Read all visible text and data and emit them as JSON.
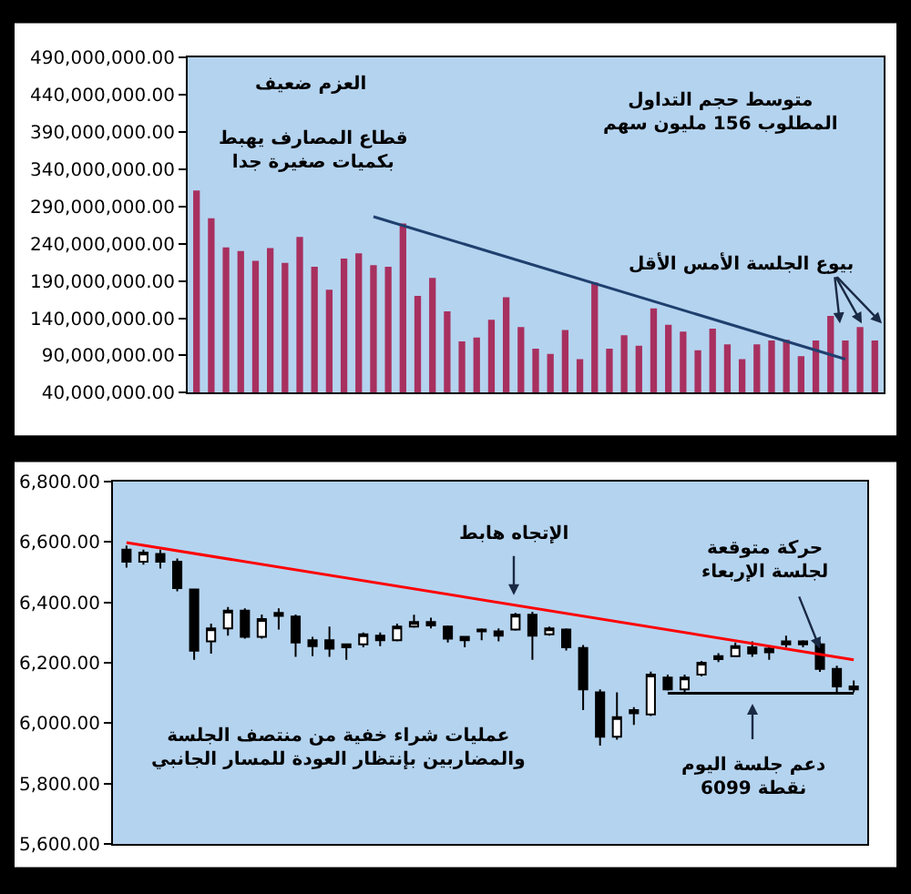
{
  "chart_data": [
    {
      "type": "bar",
      "categories": [
        null,
        null,
        null,
        null,
        null,
        null,
        null,
        null,
        null,
        null,
        null,
        null,
        null,
        null,
        null,
        null,
        null,
        null,
        null,
        null,
        null,
        null,
        null,
        null,
        null,
        null,
        null,
        null,
        null,
        null,
        null,
        null,
        null,
        null,
        null,
        null,
        null,
        null,
        null,
        null,
        null,
        null,
        null,
        null,
        null,
        null,
        null
      ],
      "series": [
        {
          "type": "bar",
          "color": "#a8305f",
          "values": [
            311000000,
            274000000,
            235000000,
            230000000,
            217000000,
            234000000,
            214000000,
            249000000,
            209000000,
            178000000,
            220000000,
            227000000,
            211000000,
            209000000,
            267000000,
            170000000,
            194000000,
            149000000,
            109000000,
            114000000,
            138000000,
            168000000,
            128000000,
            99000000,
            92000000,
            124000000,
            85000000,
            188000000,
            99000000,
            117000000,
            103000000,
            153000000,
            131000000,
            122000000,
            97000000,
            126000000,
            105000000,
            85000000,
            105000000,
            110000000,
            111000000,
            89000000,
            110000000,
            143000000,
            110000000,
            128000000,
            110000000
          ]
        },
        {
          "type": "line",
          "color": "#1f3f6e",
          "values": [
            null,
            null,
            null,
            null,
            null,
            null,
            null,
            null,
            null,
            null,
            null,
            null,
            276000000,
            null,
            null,
            null,
            null,
            null,
            null,
            null,
            null,
            null,
            null,
            null,
            null,
            null,
            null,
            null,
            null,
            null,
            null,
            null,
            null,
            null,
            null,
            null,
            null,
            null,
            null,
            null,
            null,
            null,
            null,
            null,
            85000000,
            null,
            null
          ]
        }
      ],
      "ylim": [
        40000000,
        490000000
      ],
      "yticks": [
        {
          "value": 40000000,
          "label": "40,000,000.00"
        },
        {
          "value": 90000000,
          "label": "90,000,000.00"
        },
        {
          "value": 140000000,
          "label": "140,000,000.00"
        },
        {
          "value": 190000000,
          "label": "190,000,000.00"
        },
        {
          "value": 240000000,
          "label": "240,000,000.00"
        },
        {
          "value": 290000000,
          "label": "290,000,000.00"
        },
        {
          "value": 340000000,
          "label": "340,000,000.00"
        },
        {
          "value": 390000000,
          "label": "390,000,000.00"
        },
        {
          "value": 440000000,
          "label": "440,000,000.00"
        },
        {
          "value": 490000000,
          "label": "490,000,000.00"
        }
      ],
      "tick_labels": "y",
      "annotations": [
        "العزم ضعيف",
        "قطاع المصارف يهبط\nبكميات صغيرة جدا",
        "متوسط حجم التداول\nالمطلوب 156 مليون سهم",
        "بيوع الجلسة الأمس الأقل"
      ]
    },
    {
      "type": "candlestick",
      "categories": [
        null,
        null,
        null,
        null,
        null,
        null,
        null,
        null,
        null,
        null,
        null,
        null,
        null,
        null,
        null,
        null,
        null,
        null,
        null,
        null,
        null,
        null,
        null,
        null,
        null,
        null,
        null,
        null,
        null,
        null,
        null,
        null,
        null,
        null,
        null,
        null,
        null,
        null,
        null,
        null,
        null,
        null,
        null,
        null
      ],
      "ohlc": [
        [
          6575,
          6588,
          6515,
          6535
        ],
        [
          6535,
          6575,
          6525,
          6565
        ],
        [
          6560,
          6575,
          6512,
          6535
        ],
        [
          6535,
          6545,
          6437,
          6447
        ],
        [
          6443,
          6443,
          6210,
          6240
        ],
        [
          6271,
          6330,
          6230,
          6314
        ],
        [
          6314,
          6385,
          6290,
          6373
        ],
        [
          6373,
          6380,
          6280,
          6286
        ],
        [
          6286,
          6360,
          6280,
          6345
        ],
        [
          6355,
          6380,
          6310,
          6365
        ],
        [
          6353,
          6360,
          6220,
          6267
        ],
        [
          6275,
          6286,
          6222,
          6255
        ],
        [
          6275,
          6320,
          6220,
          6247
        ],
        [
          6251,
          6263,
          6210,
          6261
        ],
        [
          6261,
          6300,
          6251,
          6294
        ],
        [
          6290,
          6300,
          6255,
          6275
        ],
        [
          6275,
          6330,
          6271,
          6320
        ],
        [
          6320,
          6359,
          6316,
          6335
        ],
        [
          6335,
          6349,
          6314,
          6324
        ],
        [
          6320,
          6324,
          6267,
          6280
        ],
        [
          6286,
          6288,
          6251,
          6275
        ],
        [
          6310,
          6314,
          6275,
          6304
        ],
        [
          6304,
          6314,
          6271,
          6290
        ],
        [
          6310,
          6365,
          6306,
          6359
        ],
        [
          6359,
          6369,
          6210,
          6290
        ],
        [
          6294,
          6320,
          6290,
          6314
        ],
        [
          6310,
          6314,
          6241,
          6251
        ],
        [
          6249,
          6259,
          6043,
          6112
        ],
        [
          6102,
          6112,
          5926,
          5955
        ],
        [
          5955,
          6102,
          5945,
          6020
        ],
        [
          6033,
          6053,
          5994,
          6043
        ],
        [
          6029,
          6171,
          6024,
          6161
        ],
        [
          6151,
          6161,
          6108,
          6112
        ],
        [
          6112,
          6161,
          6102,
          6151
        ],
        [
          6161,
          6206,
          6155,
          6200
        ],
        [
          6212,
          6232,
          6202,
          6222
        ],
        [
          6222,
          6267,
          6220,
          6255
        ],
        [
          6251,
          6271,
          6220,
          6231
        ],
        [
          6247,
          6255,
          6210,
          6235
        ],
        [
          6261,
          6290,
          6251,
          6271
        ],
        [
          6271,
          6275,
          6251,
          6261
        ],
        [
          6261,
          6271,
          6170,
          6180
        ],
        [
          6180,
          6190,
          6096,
          6122
        ],
        [
          6122,
          6141,
          6102,
          6112
        ]
      ],
      "series": [
        {
          "type": "line",
          "color": "#ff0000",
          "values": [
            6598,
            null,
            null,
            null,
            null,
            null,
            null,
            null,
            null,
            null,
            null,
            null,
            null,
            null,
            null,
            null,
            null,
            null,
            null,
            null,
            null,
            null,
            null,
            null,
            null,
            null,
            null,
            null,
            null,
            null,
            null,
            null,
            null,
            null,
            null,
            null,
            null,
            null,
            null,
            null,
            null,
            null,
            null,
            6210
          ]
        },
        {
          "type": "line",
          "color": "#000000",
          "values": [
            null,
            null,
            null,
            null,
            null,
            null,
            null,
            null,
            null,
            null,
            null,
            null,
            null,
            null,
            null,
            null,
            null,
            null,
            null,
            null,
            null,
            null,
            null,
            null,
            null,
            null,
            null,
            null,
            null,
            null,
            null,
            null,
            6099,
            null,
            null,
            null,
            null,
            null,
            null,
            null,
            null,
            null,
            null,
            6099
          ]
        }
      ],
      "ylim": [
        5600,
        6800
      ],
      "yticks": [
        {
          "value": 5600,
          "label": "5,600.00"
        },
        {
          "value": 5800,
          "label": "5,800.00"
        },
        {
          "value": 6000,
          "label": "6,000.00"
        },
        {
          "value": 6200,
          "label": "6,200.00"
        },
        {
          "value": 6400,
          "label": "6,400.00"
        },
        {
          "value": 6600,
          "label": "6,600.00"
        },
        {
          "value": 6800,
          "label": "6,800.00"
        }
      ],
      "tick_labels": "y",
      "annotations": [
        "الإتجاه هابط",
        "حركة متوقعة\nلجلسة الإربعاء",
        "عمليات شراء خفية من منتصف الجلسة\nوالمضاربين بإنتظار العودة للمسار الجانبي",
        "دعم جلسة اليوم\n6099 نقطة"
      ]
    }
  ]
}
